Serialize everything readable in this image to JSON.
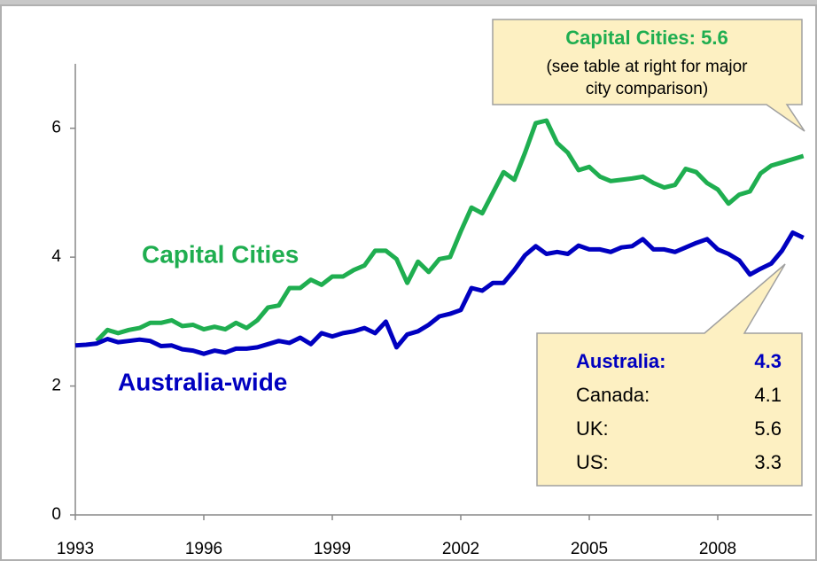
{
  "chart_data": {
    "type": "line",
    "x": [
      1993,
      1993.25,
      1993.5,
      1993.75,
      1994,
      1994.25,
      1994.5,
      1994.75,
      1995,
      1995.25,
      1995.5,
      1995.75,
      1996,
      1996.25,
      1996.5,
      1996.75,
      1997,
      1997.25,
      1997.5,
      1997.75,
      1998,
      1998.25,
      1998.5,
      1998.75,
      1999,
      1999.25,
      1999.5,
      1999.75,
      2000,
      2000.25,
      2000.5,
      2000.75,
      2001,
      2001.25,
      2001.5,
      2001.75,
      2002,
      2002.25,
      2002.5,
      2002.75,
      2003,
      2003.25,
      2003.5,
      2003.75,
      2004,
      2004.25,
      2004.5,
      2004.75,
      2005,
      2005.25,
      2005.5,
      2005.75,
      2006,
      2006.25,
      2006.5,
      2006.75,
      2007,
      2007.25,
      2007.5,
      2007.75,
      2008,
      2008.25,
      2008.5,
      2008.75,
      2009,
      2009.25,
      2009.5,
      2009.75,
      2010
    ],
    "series": [
      {
        "name": "Capital Cities",
        "color": "#1fae50",
        "values": [
          null,
          null,
          2.7,
          2.87,
          2.82,
          2.87,
          2.9,
          2.98,
          2.98,
          3.02,
          2.93,
          2.95,
          2.88,
          2.92,
          2.88,
          2.98,
          2.9,
          3.02,
          3.22,
          3.25,
          3.52,
          3.52,
          3.65,
          3.57,
          3.7,
          3.7,
          3.8,
          3.87,
          4.1,
          4.1,
          3.97,
          3.6,
          3.93,
          3.77,
          3.97,
          4.0,
          4.4,
          4.77,
          4.68,
          5.0,
          5.32,
          5.2,
          5.62,
          6.08,
          6.12,
          5.77,
          5.62,
          5.35,
          5.4,
          5.25,
          5.18,
          5.2,
          5.22,
          5.25,
          5.15,
          5.08,
          5.12,
          5.37,
          5.32,
          5.15,
          5.05,
          4.83,
          4.97,
          5.02,
          5.3,
          5.42,
          5.47,
          5.52,
          5.57
        ]
      },
      {
        "name": "Australia-wide",
        "color": "#0000c0",
        "values": [
          2.63,
          2.64,
          2.66,
          2.73,
          2.68,
          2.7,
          2.72,
          2.7,
          2.62,
          2.63,
          2.57,
          2.55,
          2.5,
          2.55,
          2.52,
          2.58,
          2.58,
          2.6,
          2.65,
          2.7,
          2.67,
          2.75,
          2.65,
          2.82,
          2.77,
          2.82,
          2.85,
          2.9,
          2.82,
          3.0,
          2.6,
          2.8,
          2.85,
          2.95,
          3.08,
          3.12,
          3.18,
          3.52,
          3.48,
          3.6,
          3.6,
          3.8,
          4.03,
          4.17,
          4.05,
          4.08,
          4.05,
          4.18,
          4.12,
          4.12,
          4.08,
          4.15,
          4.17,
          4.28,
          4.12,
          4.12,
          4.08,
          4.15,
          4.22,
          4.28,
          4.12,
          4.05,
          3.95,
          3.73,
          3.82,
          3.9,
          4.1,
          4.38,
          4.3
        ]
      }
    ],
    "xlim": [
      1993,
      2010.2
    ],
    "xticks": [
      1993,
      1996,
      1999,
      2002,
      2005,
      2008
    ],
    "ylim": [
      0,
      7
    ],
    "yticks": [
      0,
      2,
      4,
      6
    ],
    "callout_top": {
      "title": "Capital Cities: 5.6",
      "lines": [
        "(see table at right for major",
        "city comparison)"
      ]
    },
    "callout_table": [
      [
        "Australia:",
        "4.3"
      ],
      [
        "Canada:",
        "4.1"
      ],
      [
        "UK:",
        "5.6"
      ],
      [
        "US:",
        "3.3"
      ]
    ]
  }
}
